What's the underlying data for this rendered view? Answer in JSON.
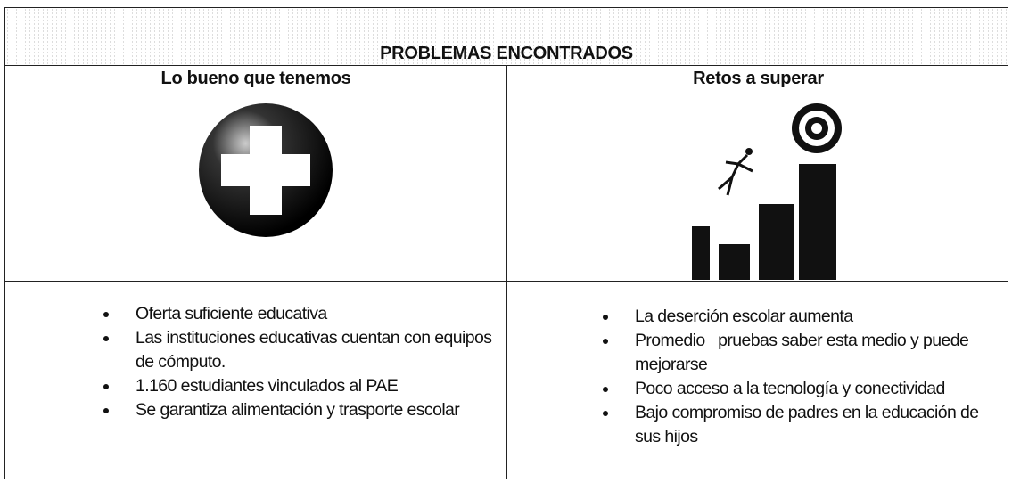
{
  "header": {
    "title": "PROBLEMAS ENCONTRADOS"
  },
  "columns": [
    {
      "heading": "Lo bueno que tenemos",
      "items": [
        "Oferta suficiente educativa",
        "Las instituciones educativas cuentan con equipos de cómputo.",
        "1.160 estudiantes vinculados al PAE",
        "Se garantiza alimentación y trasporte escolar"
      ]
    },
    {
      "heading": "Retos a superar",
      "items": [
        "La deserción escolar aumenta",
        "Promedio   pruebas saber esta medio y puede mejorarse",
        "Poco acceso a la tecnología y conectividad",
        "Bajo compromiso de padres en la educación de sus hijos"
      ]
    }
  ]
}
